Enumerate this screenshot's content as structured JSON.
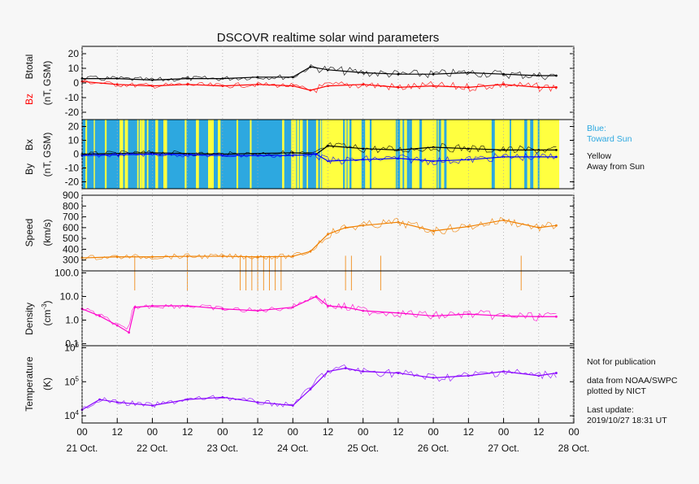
{
  "chart_data": [
    {
      "type": "line",
      "panel": "magnetic-field-total",
      "title": "DSCOVR realtime solar wind parameters",
      "ylabel_parts": [
        "Btotal",
        "Bz",
        "(nT, GSM)"
      ],
      "ylim": [
        -25,
        25
      ],
      "yticks": [
        "20",
        "10",
        "0",
        "-10",
        "-20"
      ],
      "series": [
        {
          "name": "Btotal",
          "color": "#000000",
          "x": [
            0,
            12,
            24,
            36,
            48,
            60,
            72,
            78,
            84,
            96,
            108,
            120,
            132,
            144,
            156,
            162
          ],
          "values": [
            3,
            3,
            2,
            3,
            3,
            4,
            4,
            11,
            9,
            7,
            6,
            6,
            7,
            6,
            5,
            5
          ]
        },
        {
          "name": "Bz",
          "color": "#ff0000",
          "x": [
            0,
            12,
            24,
            36,
            48,
            60,
            72,
            78,
            84,
            96,
            108,
            120,
            132,
            144,
            156,
            162
          ],
          "values": [
            1,
            -1,
            -2,
            -1,
            -2,
            -1,
            -2,
            -5,
            -2,
            -1,
            -3,
            -2,
            -3,
            -1,
            -3,
            -3
          ]
        }
      ]
    },
    {
      "type": "line",
      "panel": "magnetic-field-components",
      "ylabel_parts": [
        "By",
        "Bx",
        "(nT, GSM)"
      ],
      "ylim": [
        -25,
        25
      ],
      "yticks": [
        "20",
        "10",
        "0",
        "-10",
        "-20"
      ],
      "background_sectors": [
        {
          "label": "Blue:\nToward Sun",
          "color": "#2da8e0",
          "x_range": [
            0,
            82
          ]
        },
        {
          "label": "Yellow\nAway from Sun",
          "color": "#ffff40",
          "x_range": [
            82,
            163
          ]
        }
      ],
      "series": [
        {
          "name": "By",
          "color": "#000000",
          "x": [
            0,
            24,
            48,
            72,
            80,
            84,
            96,
            108,
            120,
            132,
            144,
            156,
            162
          ],
          "values": [
            0,
            1,
            0,
            1,
            0,
            6,
            4,
            3,
            5,
            4,
            3,
            3,
            3
          ]
        },
        {
          "name": "Bx",
          "color": "#0000ff",
          "x": [
            0,
            24,
            48,
            72,
            80,
            84,
            96,
            108,
            120,
            132,
            144,
            156,
            162
          ],
          "values": [
            -1,
            0,
            -1,
            -1,
            0,
            -5,
            -4,
            -3,
            -5,
            -4,
            -2,
            -2,
            -2
          ]
        }
      ]
    },
    {
      "type": "line",
      "panel": "speed",
      "ylabel_parts": [
        "Speed",
        "(km/s)"
      ],
      "ylim": [
        200,
        900
      ],
      "yticks": [
        "900",
        "800",
        "700",
        "600",
        "500",
        "400",
        "300"
      ],
      "series": [
        {
          "name": "Speed",
          "color": "#f08000",
          "x": [
            0,
            12,
            24,
            36,
            48,
            60,
            72,
            78,
            84,
            90,
            96,
            108,
            120,
            132,
            144,
            156,
            162
          ],
          "values": [
            320,
            330,
            330,
            335,
            335,
            330,
            335,
            380,
            540,
            600,
            620,
            650,
            570,
            610,
            670,
            600,
            620
          ]
        }
      ]
    },
    {
      "type": "line",
      "panel": "density",
      "log_scale": true,
      "ylabel_parts": [
        "Density",
        "(cm",
        "-3",
        ")"
      ],
      "ylim": [
        0.1,
        100
      ],
      "yticks": [
        "100.0",
        "10.0",
        "1.0",
        "0.1"
      ],
      "series": [
        {
          "name": "Density",
          "color": "#ff00cc",
          "x": [
            0,
            6,
            12,
            16,
            18,
            24,
            36,
            48,
            60,
            72,
            80,
            84,
            90,
            96,
            108,
            120,
            132,
            144,
            156,
            162
          ],
          "values": [
            3,
            1.5,
            0.6,
            0.3,
            3.5,
            4,
            4,
            3,
            2.5,
            3.5,
            10,
            4,
            3.5,
            2.5,
            2,
            1.5,
            1.8,
            1.5,
            1.4,
            1.4
          ]
        }
      ]
    },
    {
      "type": "line",
      "panel": "temperature",
      "log_scale": true,
      "ylabel_parts": [
        "Temperature",
        "(K)"
      ],
      "ylim": [
        7000,
        1000000
      ],
      "yticks": [
        "10",
        "10",
        "10"
      ],
      "ytick_exponents": [
        "6",
        "5",
        "4"
      ],
      "xlim": [
        0,
        168
      ],
      "xticks": [
        "00",
        "12",
        "00",
        "12",
        "00",
        "12",
        "00",
        "12",
        "00",
        "12",
        "00",
        "12",
        "00",
        "12",
        "00"
      ],
      "xdates": [
        "21 Oct.",
        "22 Oct.",
        "23 Oct.",
        "24 Oct.",
        "25 Oct.",
        "26 Oct.",
        "27 Oct.",
        "28 Oct."
      ],
      "series": [
        {
          "name": "Temperature",
          "color": "#8800ff",
          "x": [
            0,
            6,
            12,
            24,
            36,
            48,
            60,
            72,
            78,
            84,
            90,
            96,
            108,
            120,
            132,
            144,
            156,
            162
          ],
          "values": [
            15000,
            30000,
            25000,
            20000,
            30000,
            35000,
            25000,
            20000,
            60000,
            200000,
            250000,
            200000,
            180000,
            130000,
            150000,
            200000,
            150000,
            180000
          ]
        }
      ]
    }
  ],
  "notes": {
    "blue_sector": "Blue:\nToward Sun",
    "yellow_sector": "Yellow\nAway from Sun",
    "publication": "Not for publication",
    "source": "data from NOAA/SWPC\nplotted by NICT",
    "last_update": "Last update:\n2019/10/27 18:31 UT"
  }
}
